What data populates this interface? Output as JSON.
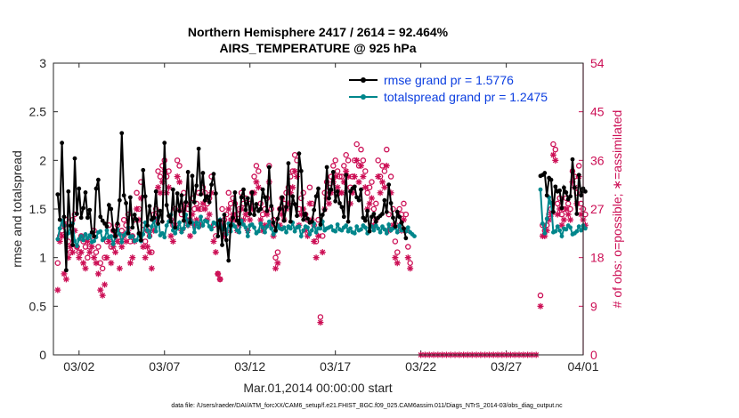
{
  "chart_data": {
    "type": "line",
    "title_line1": "Northern Hemisphere 2417 / 2614 = 92.464%",
    "title_line2": "AIRS_TEMPERATURE @ 925 hPa",
    "xlabel": "Mar.01,2014 00:00:00 start",
    "ylabel_left": "rmse and totalspread",
    "ylabel_right": "# of obs: o=possible; ∗=assimilated",
    "footnote": "data file: /Users/raeder/DAI/ATM_forcXX/CAM6_setup/f.e21.FHIST_BGC.f09_025.CAM6assim.011/Diags_NTrS_2014-03/obs_diag_output.nc",
    "xlim": [
      0.5,
      31.5
    ],
    "xticks": [
      {
        "x": 2,
        "label": "03/02"
      },
      {
        "x": 7,
        "label": "03/07"
      },
      {
        "x": 12,
        "label": "03/12"
      },
      {
        "x": 17,
        "label": "03/17"
      },
      {
        "x": 22,
        "label": "03/22"
      },
      {
        "x": 27,
        "label": "03/27"
      },
      {
        "x": 32,
        "label": "04/01"
      }
    ],
    "ylim_left": [
      0,
      3
    ],
    "yticks_left": [
      "0",
      "0.5",
      "1",
      "1.5",
      "2",
      "2.5",
      "3"
    ],
    "ylim_right": [
      0,
      54
    ],
    "yticks_right": [
      "0",
      "9",
      "18",
      "27",
      "36",
      "45",
      "54"
    ],
    "colors": {
      "rmse": "#000000",
      "spread": "#00868b",
      "obs": "#cc0f55"
    },
    "legend": [
      {
        "label": "rmse grand pr = 1.5776",
        "color": "#000000"
      },
      {
        "label": "totalspread grand pr = 1.2475",
        "color": "#00868b"
      }
    ],
    "legend_position": "top-right",
    "series": [
      {
        "name": "rmse",
        "segments": [
          {
            "x0": 0.75,
            "dx": 0.125,
            "values": [
              1.65,
              1.39,
              2.18,
              1.42,
              0.87,
              1.68,
              1.33,
              1.13,
              2.02,
              1.45,
              1.71,
              1.41,
              1.51,
              1.67,
              1.41,
              1.49,
              1.26,
              1.22,
              1.71,
              1.8,
              1.42,
              1.38,
              1.35,
              1.32,
              1.54,
              1.5,
              1.28,
              1.22,
              1.35,
              1.59,
              2.28,
              1.64,
              1.56,
              1.25,
              1.62,
              1.31,
              1.44,
              1.39,
              1.25,
              1.18,
              1.9,
              1.63,
              1.33,
              1.53,
              1.39,
              1.41,
              1.68,
              1.35,
              1.48,
              1.37,
              2.18,
              1.54,
              1.43,
              1.37,
              1.7,
              1.31,
              1.66,
              1.48,
              1.64,
              1.38,
              1.57,
              1.88,
              1.36,
              1.84,
              1.57,
              1.74,
              2.12,
              1.65,
              1.87,
              1.59,
              1.63,
              1.57,
              1.75,
              1.86,
              1.66,
              1.22,
              1.38,
              1.13,
              1.44,
              1.18,
              0.97,
              1.33,
              1.41,
              1.67,
              1.38,
              1.35,
              1.62,
              1.7,
              1.49,
              1.61,
              1.45,
              1.67,
              1.44,
              1.55,
              1.48,
              1.5,
              1.7,
              1.62,
              1.48,
              1.93,
              1.53,
              1.36,
              1.28,
              1.4,
              1.5,
              1.62,
              1.38,
              1.52,
              1.97,
              1.37,
              1.63,
              1.55,
              1.43,
              2.07,
              1.89,
              1.39,
              1.45,
              1.4,
              1.36,
              1.37,
              1.49,
              1.63,
              1.71,
              1.34,
              1.44,
              1.49,
              1.93,
              1.61,
              1.7,
              1.88,
              1.58,
              1.68,
              1.56,
              1.52,
              1.42,
              1.85,
              1.37,
              1.68,
              1.71,
              1.73,
              1.62,
              1.59,
              1.7,
              1.41,
              1.38,
              1.48,
              1.27,
              1.42,
              1.45,
              1.37,
              1.41,
              1.43,
              1.45,
              1.59,
              1.47,
              1.75,
              1.56,
              1.41,
              1.32,
              1.47,
              1.42,
              1.36,
              1.3,
              1.2
            ]
          },
          {
            "x0": 29.0,
            "dx": 0.125,
            "values": [
              1.84,
              1.85,
              1.87,
              1.64,
              1.82,
              1.8,
              1.47,
              1.73,
              1.68,
              1.69,
              1.51,
              1.72,
              1.67,
              1.6,
              1.63,
              2.01,
              1.72,
              1.45,
              1.85,
              1.64,
              1.71,
              1.68
            ]
          }
        ]
      },
      {
        "name": "totalspread",
        "segments": [
          {
            "x0": 0.75,
            "dx": 0.125,
            "values": [
              1.19,
              1.3,
              1.38,
              1.33,
              1.21,
              1.25,
              1.32,
              1.35,
              1.17,
              1.12,
              1.19,
              1.22,
              1.18,
              1.24,
              1.2,
              1.23,
              1.16,
              1.17,
              1.21,
              1.26,
              1.27,
              1.18,
              1.2,
              1.28,
              1.21,
              1.22,
              1.14,
              1.21,
              1.29,
              1.24,
              1.16,
              1.23,
              1.25,
              1.31,
              1.21,
              1.22,
              1.17,
              1.18,
              1.24,
              1.17,
              1.24,
              1.36,
              1.28,
              1.21,
              1.32,
              1.38,
              1.27,
              1.41,
              1.23,
              1.25,
              1.21,
              1.33,
              1.37,
              1.44,
              1.28,
              1.25,
              1.3,
              1.36,
              1.26,
              1.3,
              1.44,
              1.33,
              1.39,
              1.36,
              1.26,
              1.36,
              1.31,
              1.42,
              1.33,
              1.38,
              1.37,
              1.32,
              1.29,
              1.36,
              1.35,
              1.33,
              1.39,
              1.29,
              1.3,
              1.24,
              1.35,
              1.27,
              1.34,
              1.32,
              1.28,
              1.26,
              1.38,
              1.34,
              1.31,
              1.22,
              1.33,
              1.34,
              1.31,
              1.25,
              1.27,
              1.35,
              1.31,
              1.26,
              1.32,
              1.37,
              1.3,
              1.24,
              1.27,
              1.33,
              1.3,
              1.29,
              1.31,
              1.26,
              1.32,
              1.3,
              1.36,
              1.27,
              1.31,
              1.32,
              1.22,
              1.28,
              1.32,
              1.31,
              1.24,
              1.28,
              1.35,
              1.26,
              1.3,
              1.3,
              1.37,
              1.28,
              1.3,
              1.31,
              1.32,
              1.28,
              1.27,
              1.34,
              1.29,
              1.28,
              1.31,
              1.33,
              1.27,
              1.3,
              1.26,
              1.25,
              1.32,
              1.28,
              1.29,
              1.33,
              1.31,
              1.25,
              1.3,
              1.32,
              1.28,
              1.33,
              1.3,
              1.26,
              1.32,
              1.29,
              1.25,
              1.34,
              1.28,
              1.3,
              1.31,
              1.26,
              1.33,
              1.28,
              1.29,
              1.27,
              1.31,
              1.26,
              1.24,
              1.22
            ]
          },
          {
            "x0": 29.0,
            "dx": 0.125,
            "values": [
              1.7,
              1.35,
              1.25,
              1.4,
              1.62,
              1.56,
              1.26,
              1.27,
              1.32,
              1.28,
              1.22,
              1.3,
              1.29,
              1.33,
              1.31,
              1.24,
              1.25,
              1.27,
              1.32,
              1.28,
              1.33,
              1.3
            ]
          }
        ]
      },
      {
        "name": "possible",
        "segments": [
          {
            "x0": 0.75,
            "dx": 0.125,
            "values": [
              17,
              22,
              23,
              24,
              25,
              21,
              19,
              25,
              26,
              20,
              19,
              22,
              21,
              20,
              18,
              20,
              22,
              23,
              19,
              20,
              17,
              16,
              18,
              21,
              24,
              20,
              23,
              22,
              24,
              21,
              23,
              25,
              24,
              26,
              21,
              22,
              25,
              30,
              27,
              32,
              24,
              21,
              23,
              22,
              19,
              26,
              27,
              34,
              33,
              35,
              36,
              33,
              34,
              25,
              24,
              27,
              36,
              35,
              26,
              30,
              28,
              27,
              25,
              29,
              27,
              28,
              30,
              27,
              31,
              30,
              28,
              29,
              33,
              24,
              22,
              15,
              14,
              27,
              25,
              26,
              30,
              28,
              29,
              28,
              26,
              27,
              30,
              28,
              29,
              26,
              28,
              30,
              33,
              35,
              34,
              28,
              26,
              27,
              29,
              35,
              27,
              25,
              18,
              19,
              27,
              29,
              28,
              30,
              31,
              33,
              34,
              37,
              36,
              27,
              29,
              30,
              26,
              25,
              31,
              28,
              24,
              21,
              25,
              7,
              22,
              30,
              32,
              31,
              33,
              35,
              36,
              34,
              33,
              33,
              35,
              37,
              36,
              31,
              33,
              36,
              39,
              35,
              38,
              36,
              34,
              30,
              31,
              32,
              27,
              28,
              36,
              33,
              35,
              34,
              38,
              26,
              33,
              27,
              21,
              19,
              27,
              26,
              28,
              26,
              20,
              17
            ]
          },
          {
            "x0": 29.0,
            "dx": 0.125,
            "values": [
              11,
              24,
              23,
              24,
              26,
              27,
              39,
              38,
              28,
              29,
              26,
              27,
              29,
              28,
              27,
              34,
              33,
              30,
              35,
              28,
              27,
              26
            ]
          }
        ]
      },
      {
        "name": "assimilated",
        "segments": [
          {
            "x0": 0.75,
            "dx": 0.125,
            "values": [
              12,
              21,
              22,
              15,
              14,
              18,
              20,
              19,
              23,
              20,
              18,
              19,
              17,
              16,
              21,
              19,
              20,
              18,
              17,
              15,
              12,
              11,
              13,
              18,
              21,
              17,
              20,
              19,
              21,
              16,
              20,
              22,
              21,
              23,
              17,
              18,
              21,
              27,
              25,
              29,
              20,
              18,
              20,
              19,
              16,
              23,
              25,
              31,
              30,
              32,
              34,
              30,
              31,
              22,
              21,
              24,
              33,
              32,
              23,
              27,
              25,
              24,
              22,
              26,
              24,
              25,
              27,
              24,
              28,
              27,
              25,
              26,
              30,
              21,
              19,
              15,
              14,
              24,
              22,
              23,
              27,
              25,
              26,
              25,
              23,
              24,
              27,
              25,
              26,
              23,
              25,
              27,
              30,
              32,
              31,
              25,
              23,
              24,
              26,
              32,
              24,
              22,
              16,
              17,
              24,
              26,
              25,
              27,
              28,
              30,
              31,
              34,
              33,
              24,
              26,
              27,
              23,
              22,
              28,
              25,
              21,
              18,
              22,
              6,
              19,
              27,
              29,
              28,
              30,
              32,
              33,
              31,
              30,
              30,
              32,
              34,
              33,
              28,
              30,
              33,
              36,
              32,
              35,
              33,
              31,
              27,
              28,
              29,
              24,
              25,
              33,
              30,
              32,
              31,
              35,
              23,
              30,
              24,
              18,
              17,
              24,
              23,
              25,
              23,
              18,
              16
            ]
          },
          {
            "x0": 22.0,
            "dx": 0.25,
            "values": [
              0,
              0,
              0,
              0,
              0,
              0,
              0,
              0,
              0,
              0,
              0,
              0,
              0,
              0,
              0,
              0,
              0,
              0,
              0,
              0,
              0,
              0,
              0,
              0,
              0,
              0,
              0,
              0
            ]
          },
          {
            "x0": 29.0,
            "dx": 0.125,
            "values": [
              9,
              22,
              22,
              23,
              25,
              26,
              37,
              36,
              26,
              27,
              24,
              25,
              27,
              26,
              25,
              32,
              31,
              28,
              33,
              26,
              25,
              24
            ]
          }
        ]
      }
    ]
  }
}
